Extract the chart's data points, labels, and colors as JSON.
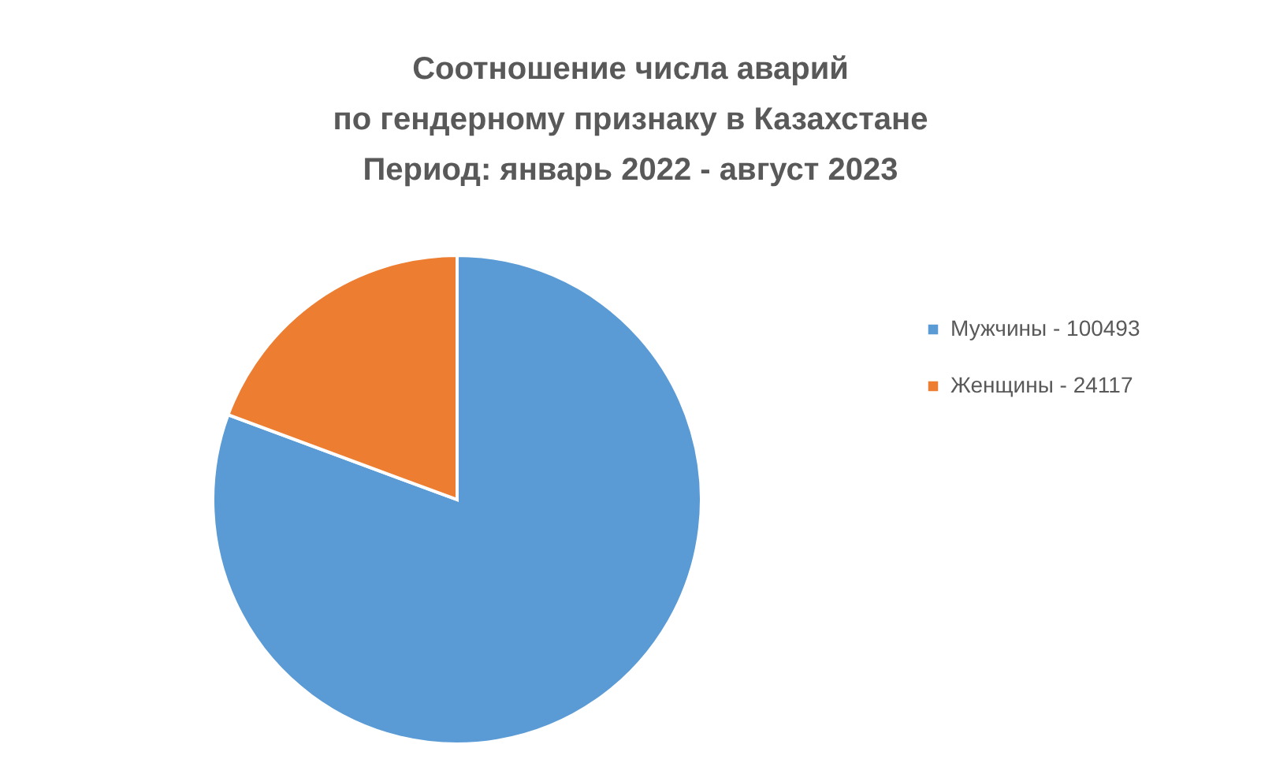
{
  "chart_data": {
    "type": "pie",
    "title": [
      "Соотношение числа аварий",
      "по гендерному признаку в Казахстане",
      "Период: январь 2022 - август 2023"
    ],
    "categories": [
      "Мужчины - 100493",
      "Женщины - 24117"
    ],
    "values": [
      80.65,
      19.35
    ],
    "colors": [
      "#5b9bd5",
      "#ed7d31"
    ],
    "legend": "right"
  }
}
